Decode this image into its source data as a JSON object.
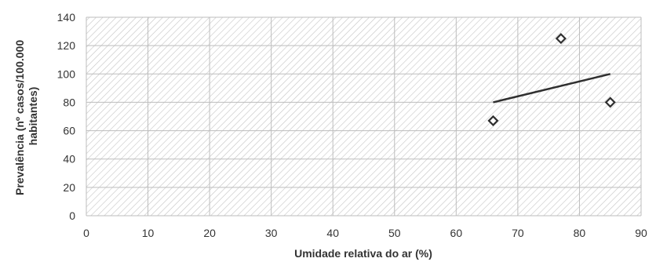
{
  "chart_data": {
    "type": "scatter",
    "title": "",
    "xlabel": "Umidade relativa do ar (%)",
    "ylabel_lines": [
      "Prevalência (nº casos/100.000",
      "habitantes)"
    ],
    "xlim": [
      0,
      90
    ],
    "ylim": [
      0,
      140
    ],
    "x_ticks": [
      0,
      10,
      20,
      30,
      40,
      50,
      60,
      70,
      80,
      90
    ],
    "y_ticks": [
      0,
      20,
      40,
      60,
      80,
      100,
      120,
      140
    ],
    "grid": true,
    "legend": "none",
    "points": [
      {
        "x": 66,
        "y": 67
      },
      {
        "x": 77,
        "y": 125
      },
      {
        "x": 85,
        "y": 80
      }
    ],
    "trendline": {
      "x": [
        66,
        85
      ],
      "y": [
        80,
        100
      ]
    },
    "colors": {
      "marker": "#2f2f2f",
      "trendline": "#2f2f2f",
      "grid": "#bdbdbd",
      "hatch": "#c4c4c4"
    }
  }
}
